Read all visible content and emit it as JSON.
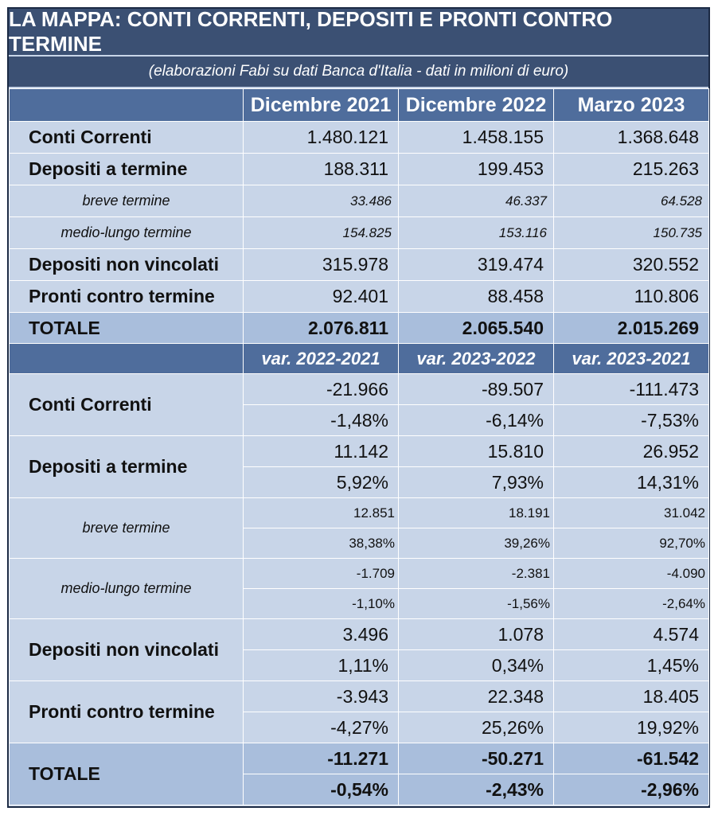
{
  "title": "LA MAPPA: CONTI CORRENTI, DEPOSITI E PRONTI CONTRO TERMINE",
  "subtitle": "(elaborazioni Fabi su dati Banca d'Italia - dati in milioni di euro)",
  "columns": [
    "Dicembre 2021",
    "Dicembre 2022",
    "Marzo  2023"
  ],
  "stocks": {
    "conti_correnti": {
      "label": "Conti Correnti",
      "values": [
        "1.480.121",
        "1.458.155",
        "1.368.648"
      ]
    },
    "depositi_termine": {
      "label": "Depositi a termine",
      "values": [
        "188.311",
        "199.453",
        "215.263"
      ]
    },
    "breve": {
      "label": "breve termine",
      "values": [
        "33.486",
        "46.337",
        "64.528"
      ]
    },
    "medio": {
      "label": "medio-lungo termine",
      "values": [
        "154.825",
        "153.116",
        "150.735"
      ]
    },
    "non_vincolati": {
      "label": "Depositi non vincolati",
      "values": [
        "315.978",
        "319.474",
        "320.552"
      ]
    },
    "pronti": {
      "label": "Pronti contro termine",
      "values": [
        "92.401",
        "88.458",
        "110.806"
      ]
    },
    "totale": {
      "label": "TOTALE",
      "values": [
        "2.076.811",
        "2.065.540",
        "2.015.269"
      ]
    }
  },
  "var_columns": [
    "var.  2022-2021",
    "var.  2023-2022",
    "var.  2023-2021"
  ],
  "variations": {
    "conti_correnti": {
      "label": "Conti Correnti",
      "abs": [
        "-21.966",
        "-89.507",
        "-111.473"
      ],
      "pct": [
        "-1,48%",
        "-6,14%",
        "-7,53%"
      ]
    },
    "depositi_termine": {
      "label": "Depositi a termine",
      "abs": [
        "11.142",
        "15.810",
        "26.952"
      ],
      "pct": [
        "5,92%",
        "7,93%",
        "14,31%"
      ]
    },
    "breve": {
      "label": "breve termine",
      "abs": [
        "12.851",
        "18.191",
        "31.042"
      ],
      "pct": [
        "38,38%",
        "39,26%",
        "92,70%"
      ]
    },
    "medio": {
      "label": "medio-lungo termine",
      "abs": [
        "-1.709",
        "-2.381",
        "-4.090"
      ],
      "pct": [
        "-1,10%",
        "-1,56%",
        "-2,64%"
      ]
    },
    "non_vincolati": {
      "label": "Depositi non vincolati",
      "abs": [
        "3.496",
        "1.078",
        "4.574"
      ],
      "pct": [
        "1,11%",
        "0,34%",
        "1,45%"
      ]
    },
    "pronti": {
      "label": "Pronti contro termine",
      "abs": [
        "-3.943",
        "22.348",
        "18.405"
      ],
      "pct": [
        "-4,27%",
        "25,26%",
        "19,92%"
      ]
    },
    "totale": {
      "label": "TOTALE",
      "abs": [
        "-11.271",
        "-50.271",
        "-61.542"
      ],
      "pct": [
        "-0,54%",
        "-2,43%",
        "-2,96%"
      ]
    }
  },
  "colors": {
    "title_bg": "#3b5073",
    "header_bg": "#4f6d9c",
    "cell_bg": "#c8d5e8",
    "total_bg": "#a9bedc"
  }
}
